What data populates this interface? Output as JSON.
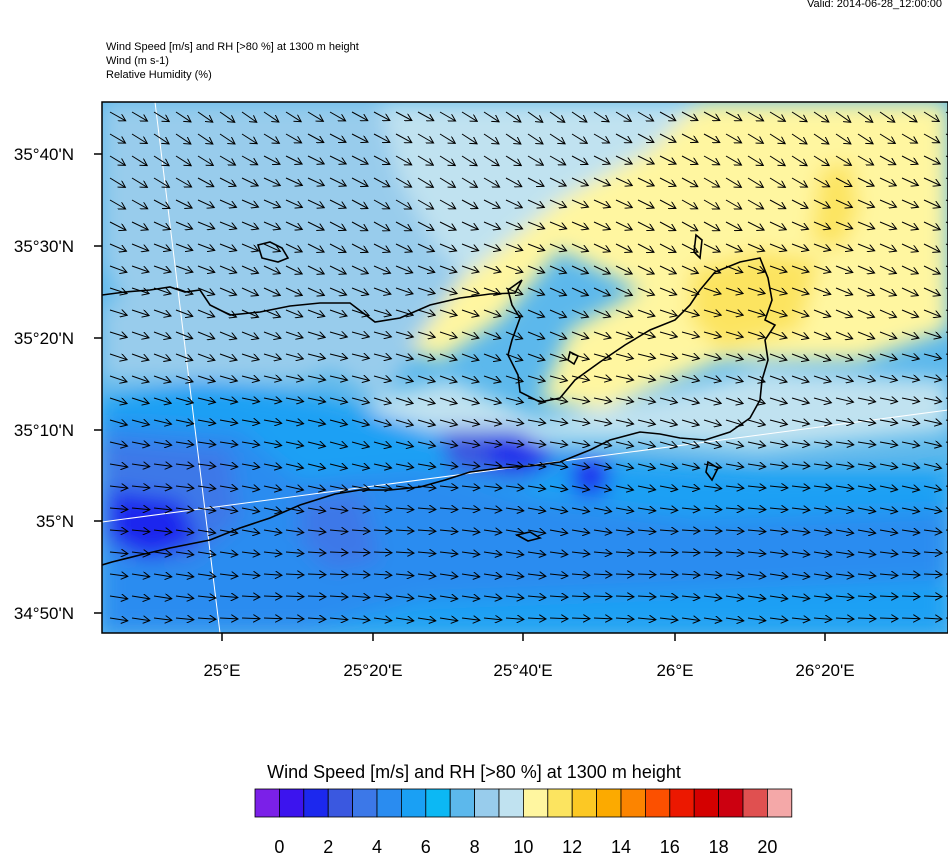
{
  "header": {
    "valid": "Valid: 2014-06-28_12:00:00",
    "line1": "Wind Speed [m/s] and RH [>80 %] at 1300 m height",
    "line2": "Wind   (m s-1)",
    "line3": "Relative Humidity    (%)"
  },
  "map": {
    "lat_labels": [
      "35°40'N",
      "35°30'N",
      "35°20'N",
      "35°10'N",
      "35°N",
      "34°50'N"
    ],
    "lon_labels": [
      "25°E",
      "25°20'E",
      "25°40'E",
      "26°E",
      "26°20'E"
    ]
  },
  "colorbar": {
    "title": "Wind Speed [m/s] and RH [>80 %] at 1300 m height",
    "colors": [
      "#7b20e8",
      "#3c14ee",
      "#1c28ee",
      "#3a58e0",
      "#3c78e8",
      "#2a8cf0",
      "#1aa0f4",
      "#0cb8f4",
      "#5cb8ec",
      "#98ccec",
      "#c0e2f0",
      "#fff6a0",
      "#fce460",
      "#fcc824",
      "#fcaa00",
      "#fc8400",
      "#fc5000",
      "#ec1800",
      "#d40000",
      "#cc0010",
      "#e05050",
      "#f4a8a8"
    ],
    "labels": [
      "0",
      "2",
      "4",
      "6",
      "8",
      "10",
      "12",
      "14",
      "16",
      "18",
      "20"
    ],
    "accent_coast": "#000000",
    "accent_grid": "#ffffff"
  }
}
